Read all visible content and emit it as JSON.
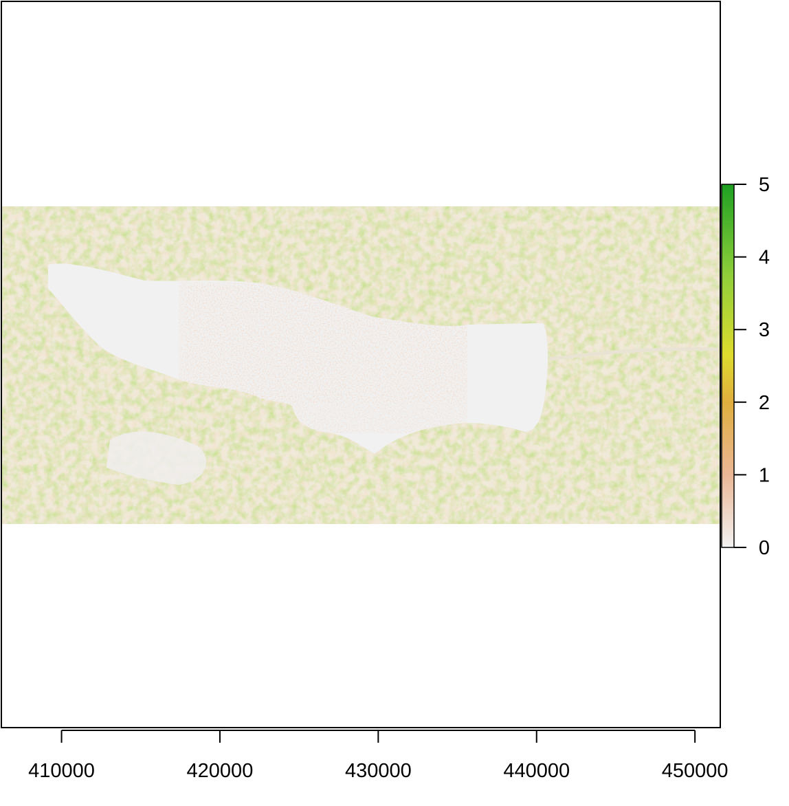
{
  "chart_data": {
    "type": "heatmap",
    "title": "",
    "xlabel": "",
    "ylabel": "",
    "x_ticks": [
      410000,
      420000,
      430000,
      440000,
      450000
    ],
    "x_tick_labels": [
      "410000",
      "420000",
      "430000",
      "440000",
      "450000"
    ],
    "xlim": [
      406200,
      451600
    ],
    "legend": {
      "placement": "right",
      "range": [
        0,
        5
      ],
      "ticks": [
        0,
        1,
        2,
        3,
        4,
        5
      ],
      "tick_labels": [
        "0",
        "1",
        "2",
        "3",
        "4",
        "5"
      ],
      "colors": [
        "#f2f2f2",
        "#eab796",
        "#e0ae3e",
        "#dedb2e",
        "#8fcf3a",
        "#1ea022"
      ]
    },
    "lake_value": 0
  }
}
